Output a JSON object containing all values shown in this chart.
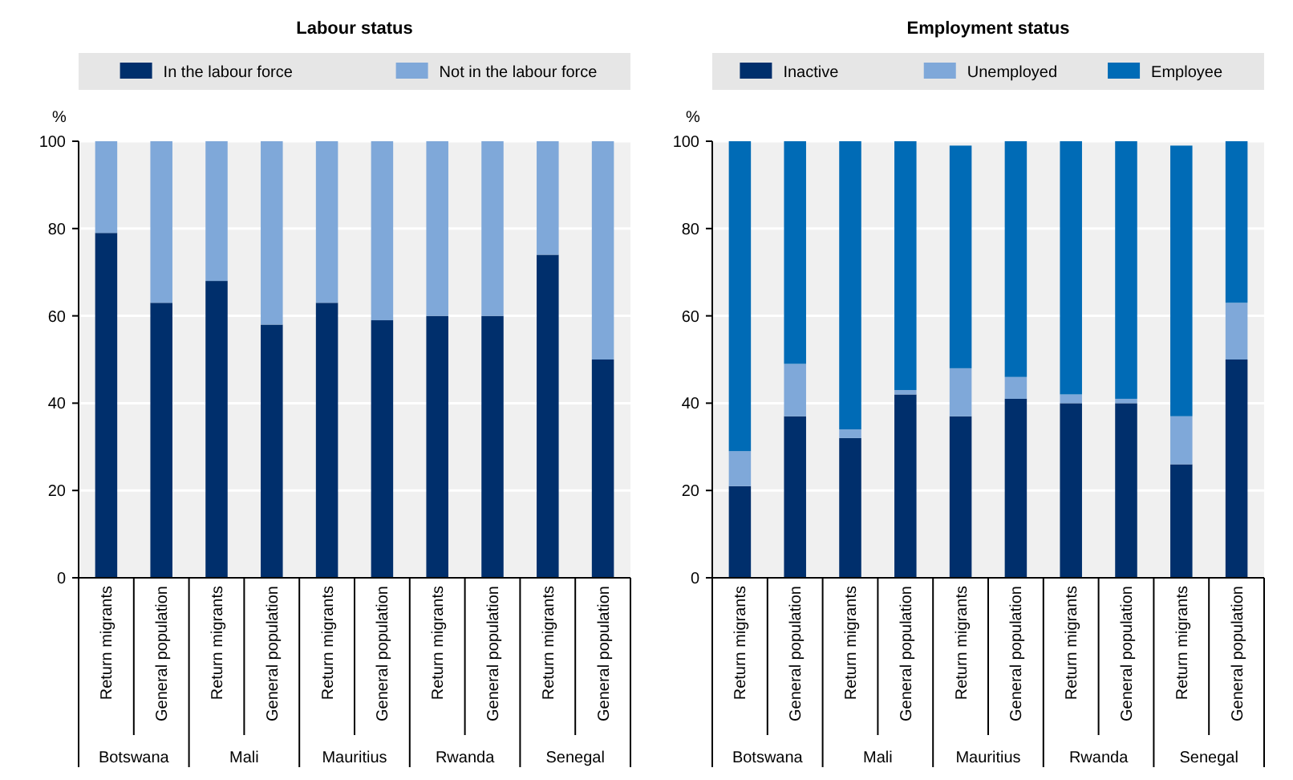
{
  "chart_data": [
    {
      "type": "bar",
      "title": "Labour status",
      "ylabel": "%",
      "stacked": true,
      "legend": "top",
      "grid": "y",
      "ylim": [
        0,
        100
      ],
      "yticks": [
        0,
        20,
        40,
        60,
        80,
        100
      ],
      "categories": [
        "Return migrants",
        "General population",
        "Return migrants",
        "General population",
        "Return migrants",
        "General population",
        "Return migrants",
        "General population",
        "Return migrants",
        "General population"
      ],
      "annotations": [
        "Botswana",
        "Mali",
        "Mauritius",
        "Rwanda",
        "Senegal"
      ],
      "series": [
        {
          "name": "In the labour force",
          "color": "#002f6c",
          "values": [
            79,
            63,
            68,
            58,
            63,
            59,
            60,
            60,
            74,
            50
          ]
        },
        {
          "name": "Not in the labour force",
          "color": "#7fa8d9",
          "values": [
            21,
            37,
            32,
            42,
            37,
            41,
            40,
            40,
            26,
            50
          ]
        }
      ]
    },
    {
      "type": "bar",
      "title": "Employment status",
      "ylabel": "%",
      "stacked": true,
      "legend": "top",
      "grid": "y",
      "ylim": [
        0,
        100
      ],
      "yticks": [
        0,
        20,
        40,
        60,
        80,
        100
      ],
      "categories": [
        "Return migrants",
        "General population",
        "Return migrants",
        "General population",
        "Return migrants",
        "General population",
        "Return migrants",
        "General population",
        "Return migrants",
        "General population"
      ],
      "annotations": [
        "Botswana",
        "Mali",
        "Mauritius",
        "Rwanda",
        "Senegal"
      ],
      "series": [
        {
          "name": "Inactive",
          "color": "#002f6c",
          "values": [
            21,
            37,
            32,
            42,
            37,
            41,
            40,
            40,
            26,
            50
          ]
        },
        {
          "name": "Unemployed",
          "color": "#7fa8d9",
          "values": [
            8,
            12,
            2,
            1,
            11,
            5,
            2,
            1,
            11,
            13
          ]
        },
        {
          "name": "Employee",
          "color": "#006bb6",
          "values": [
            71,
            51,
            66,
            57,
            51,
            54,
            58,
            59,
            62,
            37
          ]
        }
      ]
    }
  ]
}
